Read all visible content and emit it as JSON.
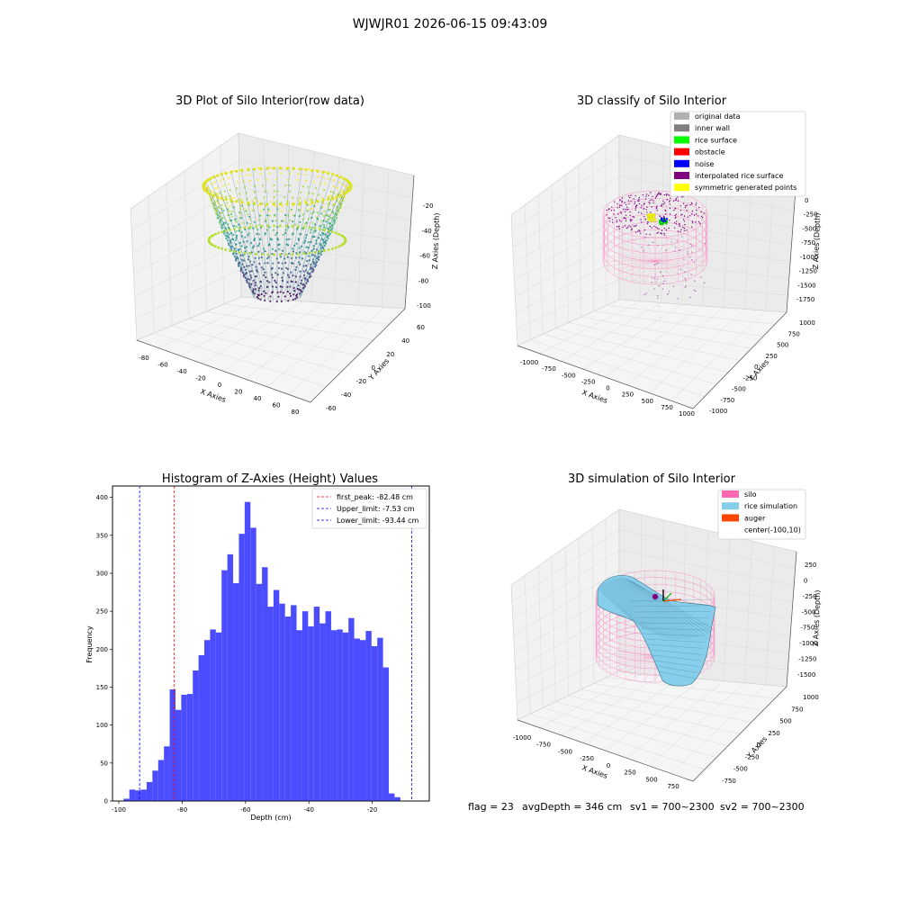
{
  "figure": {
    "suptitle": "WJWJR01 2026-06-15 09:43:09",
    "footer": {
      "flag": "flag = 23",
      "avg_depth": "avgDepth = 346 cm",
      "sv1": "sv1 = 700~2300",
      "sv2": "sv2 = 700~2300"
    }
  },
  "panel1": {
    "title": "3D Plot of Silo Interior(row data)",
    "xlabel": "X Axies",
    "ylabel": "Y Axies",
    "zlabel": "Z Axies (Depth)",
    "xticks": [
      "-80",
      "-60",
      "-40",
      "-20",
      "0",
      "20",
      "40",
      "60",
      "80"
    ],
    "yticks": [
      "-60",
      "-40",
      "-20",
      "0",
      "20",
      "40",
      "60"
    ],
    "zticks": [
      "-20",
      "-40",
      "-60",
      "-80",
      "-100"
    ],
    "colormap": "viridis"
  },
  "panel2": {
    "title": "3D classify of Silo Interior",
    "xlabel": "X Axies",
    "ylabel": "Y Axies",
    "zlabel": "Z Axies (Depth)",
    "xticks": [
      "-1000",
      "-750",
      "-500",
      "-250",
      "0",
      "250",
      "500",
      "750",
      "1000"
    ],
    "yticks": [
      "-1000",
      "-750",
      "-500",
      "-250",
      "0",
      "250",
      "500",
      "750",
      "1000"
    ],
    "zticks": [
      "0",
      "-250",
      "-500",
      "-750",
      "-1000",
      "-1250",
      "-1500",
      "-1750"
    ],
    "legend": [
      {
        "label": "original data",
        "color": "#b0b0b0"
      },
      {
        "label": "inner wall",
        "color": "#808080"
      },
      {
        "label": "rice surface",
        "color": "#00ff00"
      },
      {
        "label": "obstacle",
        "color": "#ff0000"
      },
      {
        "label": "noise",
        "color": "#0000ff"
      },
      {
        "label": "interpolated rice surface",
        "color": "#800080"
      },
      {
        "label": "symmetric generated points",
        "color": "#ffff00"
      }
    ]
  },
  "panel4": {
    "title": "3D simulation of Silo Interior",
    "xlabel": "X Axies",
    "ylabel": "Y Axies",
    "zlabel": "Z Axies (Depth)",
    "xticks": [
      "-1000",
      "-750",
      "-500",
      "-250",
      "0",
      "250",
      "500",
      "750"
    ],
    "yticks": [
      "-750",
      "-500",
      "-250",
      "0",
      "250",
      "500",
      "750",
      "1000"
    ],
    "zticks": [
      "250",
      "0",
      "-250",
      "-500",
      "-750",
      "-1000",
      "-1250",
      "-1500"
    ],
    "legend": [
      {
        "label": "silo",
        "color": "#ff69b4"
      },
      {
        "label": "rice simulation",
        "color": "#87ceeb"
      },
      {
        "label": "auger",
        "color": "#ff4500"
      },
      {
        "label": "center(-100,10)",
        "color": ""
      }
    ]
  },
  "chart_data": {
    "type": "bar",
    "title": "Histogram of Z-Axies (Height) Values",
    "xlabel": "Depth (cm)",
    "ylabel": "Frequency",
    "xlim": [
      -102,
      -2
    ],
    "ylim": [
      0,
      415
    ],
    "xticks": [
      -100,
      -80,
      -60,
      -40,
      -20
    ],
    "yticks": [
      0,
      50,
      100,
      150,
      200,
      250,
      300,
      350,
      400
    ],
    "bar_color": "#4c4cff",
    "bin_start": -98.5,
    "bin_width": 1.82,
    "values": [
      3,
      15,
      14,
      15,
      25,
      40,
      54,
      72,
      147,
      120,
      140,
      141,
      172,
      192,
      212,
      226,
      222,
      304,
      325,
      287,
      352,
      394,
      360,
      286,
      308,
      256,
      278,
      260,
      243,
      258,
      225,
      250,
      230,
      256,
      234,
      250,
      225,
      226,
      222,
      241,
      214,
      212,
      224,
      204,
      215,
      176,
      10,
      5
    ],
    "lines": [
      {
        "label": "first_peak: -82.48 cm",
        "x": -82.48,
        "color": "#ff0000"
      },
      {
        "label": "Upper_limit: -7.53 cm",
        "x": -7.53,
        "color": "#0000ff"
      },
      {
        "label": "Lower_limit: -93.44 cm",
        "x": -93.44,
        "color": "#0000ff"
      }
    ],
    "grid": false,
    "legend_position": "upper-right"
  }
}
